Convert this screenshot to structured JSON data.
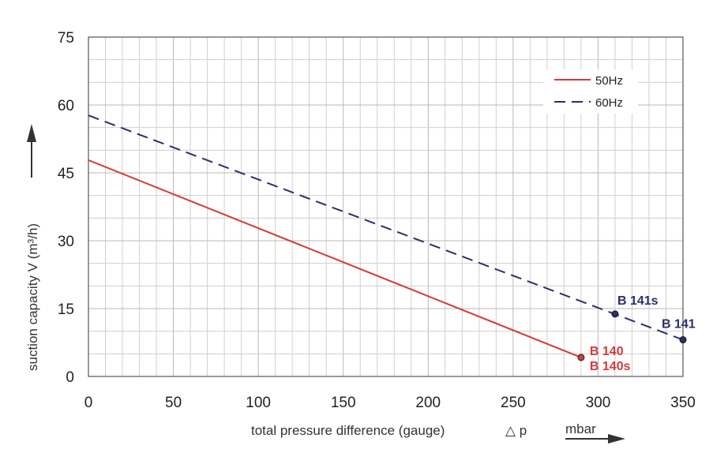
{
  "chart_data": {
    "type": "line",
    "title": "",
    "xlabel": "total pressure difference (gauge)",
    "xlabel_symbol": "△ p",
    "xunit": "mbar",
    "ylabel": "suction capacity V (m³/h)",
    "xlim": [
      0,
      350
    ],
    "ylim": [
      0,
      75
    ],
    "xticks": [
      0,
      50,
      100,
      150,
      200,
      250,
      300,
      350
    ],
    "yticks": [
      0,
      15,
      30,
      45,
      60,
      75
    ],
    "grid": true,
    "legend_position": "top-right",
    "colors": {
      "50Hz": "#d63a3a",
      "60Hz": "#2b2f6b"
    },
    "series": [
      {
        "name": "50Hz",
        "style": "solid",
        "x": [
          0,
          290
        ],
        "y": [
          47.8,
          4.2
        ],
        "endpoint": {
          "x": 290,
          "y": 4.2,
          "labels": [
            "B 140",
            "B 140s"
          ]
        }
      },
      {
        "name": "60Hz",
        "style": "dashed",
        "x": [
          0,
          350
        ],
        "y": [
          57.7,
          8.1
        ],
        "points": [
          {
            "x": 310,
            "y": 13.8,
            "label": "B 141s"
          },
          {
            "x": 350,
            "y": 8.1,
            "label": "B 141"
          }
        ]
      }
    ]
  }
}
